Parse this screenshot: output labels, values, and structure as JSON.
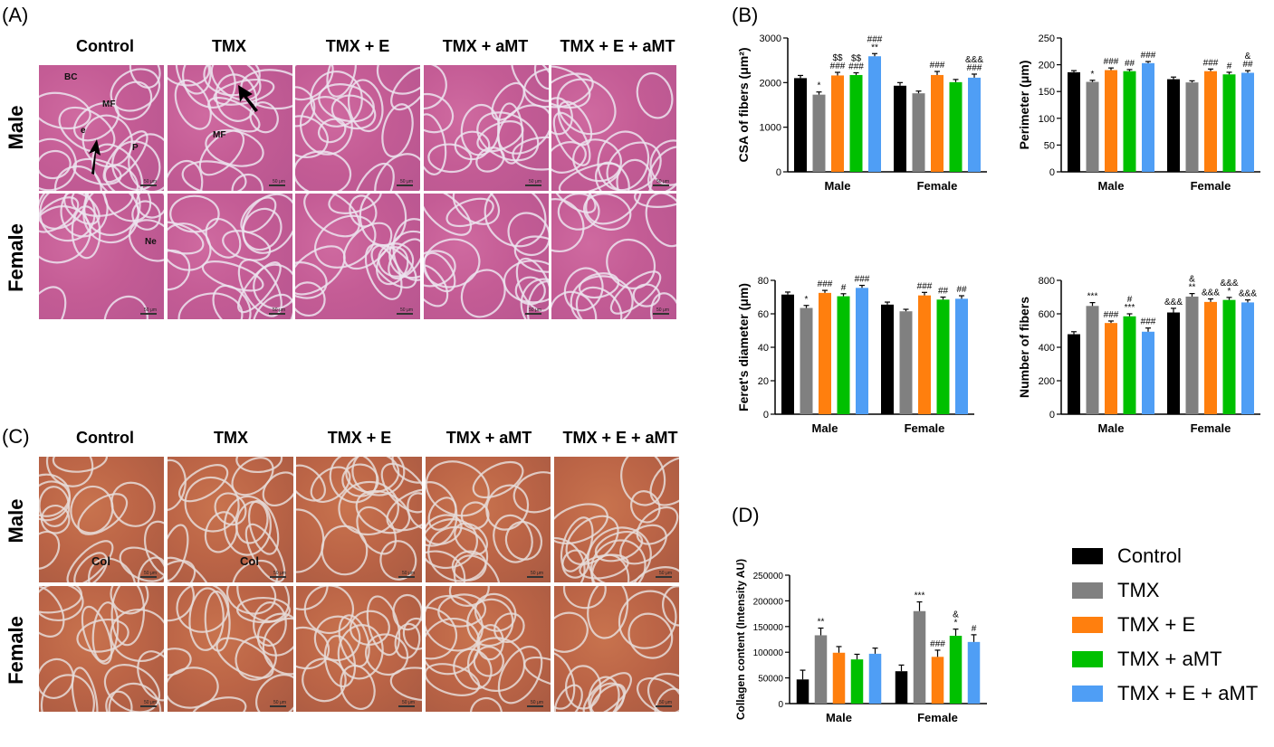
{
  "panels": {
    "A": "(A)",
    "B": "(B)",
    "C": "(C)",
    "D": "(D)"
  },
  "histology": {
    "columns": [
      "Control",
      "TMX",
      "TMX + E",
      "TMX + aMT",
      "TMX + E + aMT"
    ],
    "rows": [
      "Male",
      "Female"
    ],
    "he_labels": [
      "BC",
      "MF",
      "e",
      "P",
      "MF",
      "Ne"
    ],
    "sr_labels": [
      "Col",
      "Col"
    ],
    "scale_text": "50 μm",
    "he_color": "#c45c95",
    "sr_color": "#bb6446"
  },
  "legend": {
    "items": [
      {
        "label": "Control",
        "color": "#000000"
      },
      {
        "label": "TMX",
        "color": "#808080"
      },
      {
        "label": "TMX + E",
        "color": "#ff7f0e"
      },
      {
        "label": "TMX + aMT",
        "color": "#00c000"
      },
      {
        "label": "TMX + E + aMT",
        "color": "#4f9ef5"
      }
    ]
  },
  "chart_data": [
    {
      "id": "csa",
      "type": "bar",
      "title": "",
      "ylabel": "CSA of fibers (μm²)",
      "categories": [
        "Male",
        "Female"
      ],
      "ylim": [
        0,
        3000
      ],
      "yticks": [
        0,
        1000,
        2000,
        3000
      ],
      "series": [
        {
          "name": "Control",
          "values": [
            2100,
            1930
          ],
          "errors": [
            60,
            70
          ]
        },
        {
          "name": "TMX",
          "values": [
            1730,
            1760
          ],
          "errors": [
            60,
            50
          ]
        },
        {
          "name": "TMX + E",
          "values": [
            2160,
            2170
          ],
          "errors": [
            70,
            80
          ]
        },
        {
          "name": "TMX + aMT",
          "values": [
            2170,
            2010
          ],
          "errors": [
            50,
            60
          ]
        },
        {
          "name": "TMX + E + aMT",
          "values": [
            2590,
            2110
          ],
          "errors": [
            60,
            80
          ]
        }
      ],
      "annotations": [
        [
          [
            "",
            "*",
            "$$\n###",
            "$$\n###",
            "###\n**"
          ],
          [
            "",
            "",
            "###",
            "",
            "&&&\n###"
          ]
        ]
      ]
    },
    {
      "id": "perimeter",
      "type": "bar",
      "title": "",
      "ylabel": "Perimeter (μm)",
      "categories": [
        "Male",
        "Female"
      ],
      "ylim": [
        0,
        250
      ],
      "yticks": [
        0,
        50,
        100,
        150,
        200,
        250
      ],
      "series": [
        {
          "name": "Control",
          "values": [
            186,
            173
          ],
          "errors": [
            3,
            4
          ]
        },
        {
          "name": "TMX",
          "values": [
            168,
            167
          ],
          "errors": [
            3,
            3
          ]
        },
        {
          "name": "TMX + E",
          "values": [
            190,
            188
          ],
          "errors": [
            4,
            4
          ]
        },
        {
          "name": "TMX + aMT",
          "values": [
            188,
            182
          ],
          "errors": [
            3,
            4
          ]
        },
        {
          "name": "TMX + E + aMT",
          "values": [
            203,
            185
          ],
          "errors": [
            3,
            4
          ]
        }
      ],
      "annotations": [
        [
          [
            "",
            "*",
            "###",
            "##",
            "###"
          ],
          [
            "",
            "",
            "###",
            "#",
            "&\n##"
          ]
        ]
      ]
    },
    {
      "id": "feret",
      "type": "bar",
      "title": "",
      "ylabel": "Feret's diameter (μm)",
      "categories": [
        "Male",
        "Female"
      ],
      "ylim": [
        0,
        80
      ],
      "yticks": [
        0,
        20,
        40,
        60,
        80
      ],
      "series": [
        {
          "name": "Control",
          "values": [
            71.5,
            65.5
          ],
          "errors": [
            1.5,
            1.5
          ]
        },
        {
          "name": "TMX",
          "values": [
            63.5,
            61.5
          ],
          "errors": [
            1.5,
            1.2
          ]
        },
        {
          "name": "TMX + E",
          "values": [
            72.5,
            71
          ],
          "errors": [
            1.5,
            1.8
          ]
        },
        {
          "name": "TMX + aMT",
          "values": [
            70.5,
            68.5
          ],
          "errors": [
            1.5,
            1.5
          ]
        },
        {
          "name": "TMX + E + aMT",
          "values": [
            75.5,
            69
          ],
          "errors": [
            1.5,
            1.8
          ]
        }
      ],
      "annotations": [
        [
          [
            "",
            "*",
            "###",
            "#",
            "###"
          ],
          [
            "",
            "",
            "###",
            "##",
            "##"
          ]
        ]
      ]
    },
    {
      "id": "fibers",
      "type": "bar",
      "title": "",
      "ylabel": "Number of fibers",
      "categories": [
        "Male",
        "Female"
      ],
      "ylim": [
        0,
        800
      ],
      "yticks": [
        0,
        200,
        400,
        600,
        800
      ],
      "series": [
        {
          "name": "Control",
          "values": [
            478,
            608
          ],
          "errors": [
            15,
            25
          ]
        },
        {
          "name": "TMX",
          "values": [
            647,
            703
          ],
          "errors": [
            20,
            18
          ]
        },
        {
          "name": "TMX + E",
          "values": [
            545,
            671
          ],
          "errors": [
            12,
            18
          ]
        },
        {
          "name": "TMX + aMT",
          "values": [
            585,
            683
          ],
          "errors": [
            15,
            15
          ]
        },
        {
          "name": "TMX + E + aMT",
          "values": [
            493,
            668
          ],
          "errors": [
            22,
            15
          ]
        }
      ],
      "annotations": [
        [
          [
            "",
            "***",
            "###",
            "#\n***",
            "###"
          ],
          [
            "&&&",
            "&\n**",
            "&&&",
            "&&&\n*",
            "&&&"
          ]
        ]
      ]
    },
    {
      "id": "collagen",
      "type": "bar",
      "title": "",
      "ylabel": "Collagen content (Intensity AU)",
      "categories": [
        "Male",
        "Female"
      ],
      "ylim": [
        0,
        250000
      ],
      "yticks": [
        0,
        50000,
        100000,
        150000,
        200000,
        250000
      ],
      "series": [
        {
          "name": "Control",
          "values": [
            47000,
            63000
          ],
          "errors": [
            18000,
            12000
          ]
        },
        {
          "name": "TMX",
          "values": [
            133000,
            180000
          ],
          "errors": [
            14000,
            18000
          ]
        },
        {
          "name": "TMX + E",
          "values": [
            99000,
            91000
          ],
          "errors": [
            12000,
            13000
          ]
        },
        {
          "name": "TMX + aMT",
          "values": [
            86000,
            132000
          ],
          "errors": [
            10000,
            13000
          ]
        },
        {
          "name": "TMX + E + aMT",
          "values": [
            97000,
            120000
          ],
          "errors": [
            11000,
            14000
          ]
        }
      ],
      "annotations": [
        [
          [
            "",
            "**",
            "",
            "",
            ""
          ],
          [
            "",
            "***",
            "###",
            "&\n*",
            "#"
          ]
        ]
      ]
    }
  ]
}
